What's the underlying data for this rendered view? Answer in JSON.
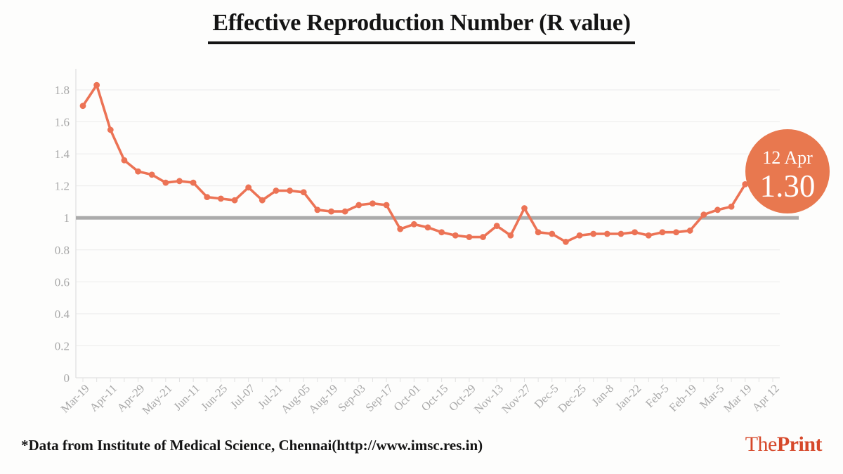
{
  "title": "Effective Reproduction Number (R value)",
  "source_note": "*Data from Institute of Medical Science, Chennai(http://www.imsc.res.in)",
  "brand": {
    "the": "The",
    "print": "Print"
  },
  "badge": {
    "date": "12 Apr",
    "value": "1.30"
  },
  "colors": {
    "line": "#EC7355",
    "badge": "#E8784F",
    "badge_text": "#FFFFFF",
    "reference_line": "#ABABAB",
    "grid": "#EBEBEB",
    "axis": "#E2E2E2",
    "axis_text": "#A8A8A8",
    "brand": "#D6492B",
    "text": "#141414",
    "background": "#FDFDFC"
  },
  "chart_data": {
    "type": "line",
    "title": "Effective Reproduction Number (R value)",
    "x_tick_labels": [
      "Mar-19",
      "Apr-11",
      "Apr-29",
      "May-21",
      "Jun-11",
      "Jun-25",
      "Jul-07",
      "Jul-21",
      "Aug-05",
      "Aug-19",
      "Sep-03",
      "Sep-17",
      "Oct-01",
      "Oct-15",
      "Oct-29",
      "Nov-13",
      "Nov-27",
      "Dec-5",
      "Dec-25",
      "Jan-8",
      "Jan-22",
      "Feb-5",
      "Feb-19",
      "Mar-5",
      "Mar 19",
      "Apr 12"
    ],
    "points_per_label": 2,
    "values": [
      1.7,
      1.83,
      1.55,
      1.36,
      1.29,
      1.27,
      1.22,
      1.23,
      1.22,
      1.13,
      1.12,
      1.11,
      1.19,
      1.11,
      1.17,
      1.17,
      1.16,
      1.05,
      1.04,
      1.04,
      1.08,
      1.09,
      1.08,
      0.93,
      0.96,
      0.94,
      0.91,
      0.89,
      0.88,
      0.88,
      0.95,
      0.89,
      1.06,
      0.91,
      0.9,
      0.85,
      0.89,
      0.9,
      0.9,
      0.9,
      0.91,
      0.89,
      0.91,
      0.91,
      0.92,
      1.02,
      1.05,
      1.07,
      1.21,
      1.26,
      1.3
    ],
    "yticks": [
      "0",
      "0.2",
      "0.4",
      "0.6",
      "0.8",
      "1",
      "1.2",
      "1.4",
      "1.6",
      "1.8"
    ],
    "ylim": [
      0,
      1.9
    ],
    "reference_line": 1,
    "grid": true,
    "legend": "none",
    "annotation": {
      "label": "12 Apr",
      "value": 1.3,
      "position": "last-point"
    }
  }
}
